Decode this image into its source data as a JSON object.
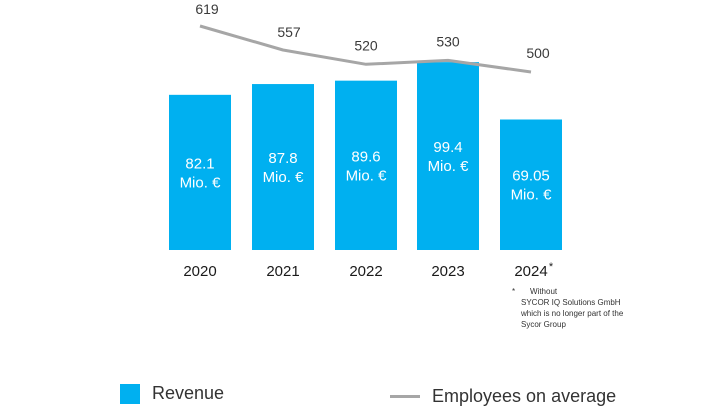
{
  "chart_data": {
    "type": "bar+line",
    "categories": [
      "2020",
      "2021",
      "2022",
      "2023",
      "2024"
    ],
    "category_markers": [
      "",
      "",
      "",
      "",
      "*"
    ],
    "series": [
      {
        "name": "Revenue",
        "kind": "bar",
        "values": [
          82.1,
          87.8,
          89.6,
          99.4,
          69.05
        ],
        "labels": [
          {
            "value": "82.1",
            "unit": "Mio. €"
          },
          {
            "value": "87.8",
            "unit": "Mio. €"
          },
          {
            "value": "89.6",
            "unit": "Mio. €"
          },
          {
            "value": "99.4",
            "unit": "Mio. €"
          },
          {
            "value": "69.05",
            "unit": "Mio. €"
          }
        ],
        "color": "#00b0f0"
      },
      {
        "name": "Employees on average",
        "kind": "line",
        "values": [
          619,
          557,
          520,
          530,
          500
        ],
        "color": "#a6a6a6"
      }
    ],
    "bar_range": [
      0,
      100
    ],
    "line_range": [
      500,
      620
    ]
  },
  "footnote": {
    "marker": "*",
    "lines": [
      "Without",
      "SYCOR IQ Solutions GmbH",
      "which is no longer part of the",
      "Sycor Group"
    ]
  },
  "legend": {
    "bar_label": "Revenue",
    "line_label": "Employees on average"
  }
}
